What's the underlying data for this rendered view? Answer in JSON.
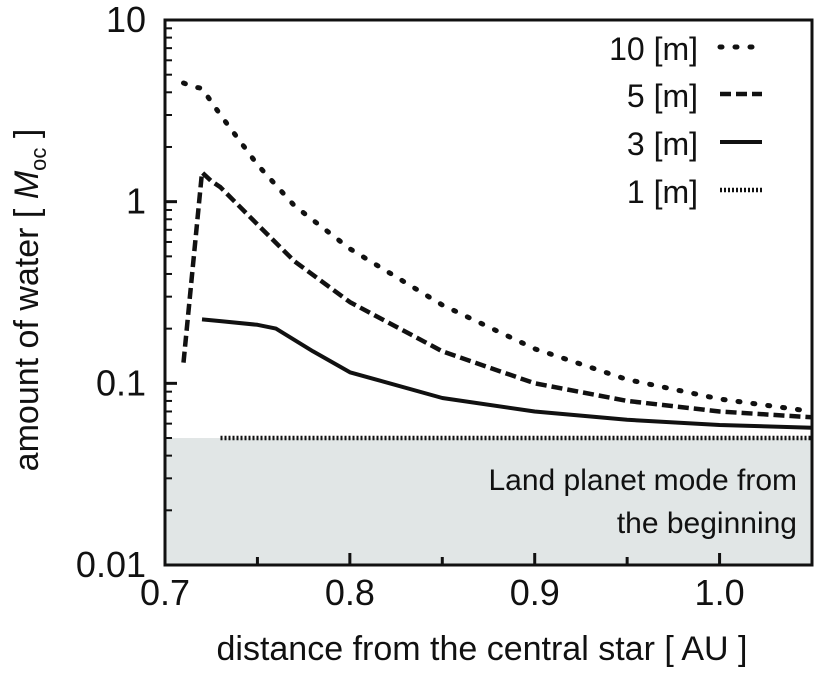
{
  "chart_data": {
    "type": "line",
    "xlabel": "distance from the central star [ AU ]",
    "ylabel_prefix": "amount of water [ ",
    "ylabel_symbol": "M",
    "ylabel_subscript": "oc",
    "ylabel_suffix": " ]",
    "xlim": [
      0.7,
      1.05
    ],
    "ylim": [
      0.01,
      10
    ],
    "yscale": "log",
    "xticks": [
      0.7,
      0.8,
      0.9,
      1.0
    ],
    "xtick_labels": [
      "0.7",
      "0.8",
      "0.9",
      "1.0"
    ],
    "yticks": [
      0.01,
      0.1,
      1,
      10
    ],
    "ytick_labels": [
      "0.01",
      "0.1",
      "1",
      "10"
    ],
    "grid": false,
    "legend_position": "top-right",
    "shaded_region": {
      "y_from": 0.01,
      "y_to": 0.05,
      "label_line1": "Land planet mode from",
      "label_line2": "the beginning",
      "color": "#e1e6e6"
    },
    "series": [
      {
        "name": "10 [m]",
        "style": "dotted",
        "x": [
          0.71,
          0.715,
          0.72,
          0.73,
          0.75,
          0.77,
          0.8,
          0.85,
          0.9,
          0.95,
          1.0,
          1.05
        ],
        "y": [
          4.5,
          4.3,
          4.2,
          3.0,
          1.6,
          0.95,
          0.55,
          0.27,
          0.155,
          0.105,
          0.082,
          0.07
        ]
      },
      {
        "name": "5 [m]",
        "style": "dashed",
        "x": [
          0.71,
          0.72,
          0.725,
          0.73,
          0.75,
          0.77,
          0.8,
          0.85,
          0.9,
          0.95,
          1.0,
          1.05
        ],
        "y": [
          0.13,
          1.45,
          1.3,
          1.2,
          0.75,
          0.47,
          0.28,
          0.15,
          0.1,
          0.08,
          0.07,
          0.065
        ]
      },
      {
        "name": "3 [m]",
        "style": "solid",
        "x": [
          0.72,
          0.73,
          0.75,
          0.76,
          0.78,
          0.8,
          0.85,
          0.9,
          0.95,
          1.0,
          1.05
        ],
        "y": [
          0.225,
          0.22,
          0.21,
          0.2,
          0.15,
          0.115,
          0.083,
          0.07,
          0.063,
          0.059,
          0.057
        ]
      },
      {
        "name": "1 [m]",
        "style": "fine-dotted",
        "x": [
          0.73,
          0.8,
          0.9,
          1.0,
          1.05
        ],
        "y": [
          0.05,
          0.05,
          0.05,
          0.05,
          0.05
        ]
      }
    ]
  }
}
